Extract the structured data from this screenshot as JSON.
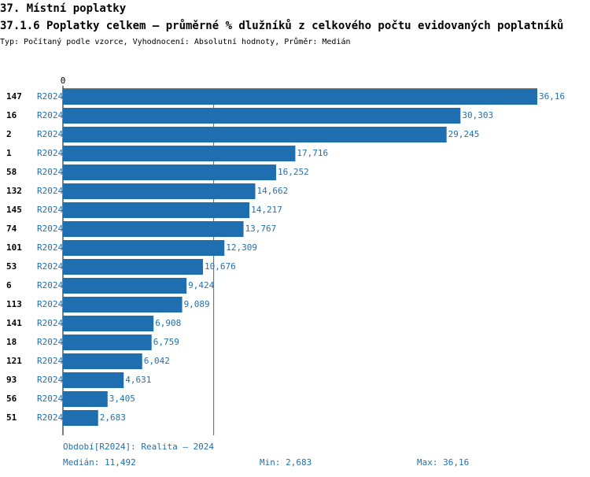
{
  "chart_data": {
    "type": "bar",
    "orientation": "horizontal",
    "section": "37. Místní poplatky",
    "title": "37.1.6 Poplatky celkem – průměrné % dlužníků z celkového počtu evidovaných poplatníků",
    "subtitle": "Typ: Počítaný podle vzorce, Vyhodnocení: Absolutní hodnoty, Průměr: Medián",
    "categories": [
      "147",
      "16",
      "2",
      "1",
      "58",
      "132",
      "145",
      "74",
      "101",
      "53",
      "6",
      "113",
      "141",
      "18",
      "121",
      "93",
      "56",
      "51"
    ],
    "series_labels": [
      "R2024",
      "R2024",
      "R2024",
      "R2024",
      "R2024",
      "R2024",
      "R2024",
      "R2024",
      "R2024",
      "R2024",
      "R2024",
      "R2024",
      "R2024",
      "R2024",
      "R2024",
      "R2024",
      "R2024",
      "R2024"
    ],
    "values": [
      36.16,
      30.303,
      29.245,
      17.716,
      16.252,
      14.662,
      14.217,
      13.767,
      12.309,
      10.676,
      9.424,
      9.089,
      6.908,
      6.759,
      6.042,
      4.631,
      3.405,
      2.683
    ],
    "value_labels": [
      "36,16",
      "30,303",
      "29,245",
      "17,716",
      "16,252",
      "14,662",
      "14,217",
      "13,767",
      "12,309",
      "10,676",
      "9,424",
      "9,089",
      "6,908",
      "6,759",
      "6,042",
      "4,631",
      "3,405",
      "2,683"
    ],
    "color": "#1f6fb0",
    "xlim": [
      0,
      36.16
    ],
    "xticks": [
      0
    ],
    "median": {
      "value": 11.492,
      "label": "Medián: 11,492"
    },
    "period_label": "Období[R2024]: Realita – 2024",
    "min_label": "Min: 2,683",
    "max_label": "Max: 36,16"
  }
}
